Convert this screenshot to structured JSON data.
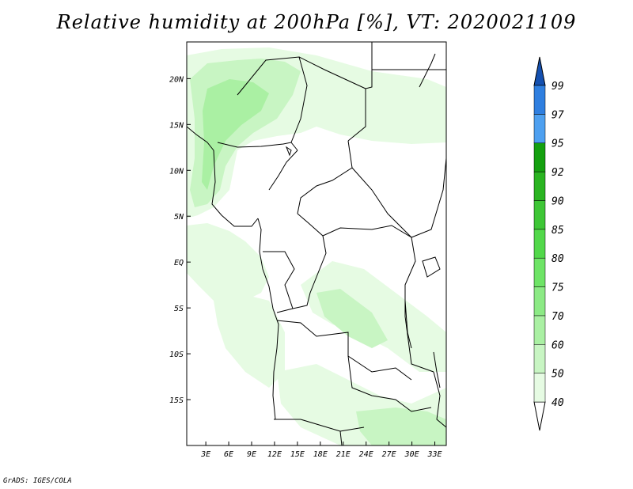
{
  "title": "Relative humidity at 200hPa [%], VT: 2020021109",
  "footer": "GrADS: IGES/COLA",
  "map": {
    "lat_range": [
      -20,
      24
    ],
    "lon_range": [
      0.5,
      34.5
    ],
    "lat_ticks": [
      {
        "value": 20,
        "label": "20N"
      },
      {
        "value": 15,
        "label": "15N"
      },
      {
        "value": 10,
        "label": "10N"
      },
      {
        "value": 5,
        "label": "5N"
      },
      {
        "value": 0,
        "label": "EQ"
      },
      {
        "value": -5,
        "label": "5S"
      },
      {
        "value": -10,
        "label": "10S"
      },
      {
        "value": -15,
        "label": "15S"
      }
    ],
    "lon_ticks": [
      {
        "value": 3,
        "label": "3E"
      },
      {
        "value": 6,
        "label": "6E"
      },
      {
        "value": 9,
        "label": "9E"
      },
      {
        "value": 12,
        "label": "12E"
      },
      {
        "value": 15,
        "label": "15E"
      },
      {
        "value": 18,
        "label": "18E"
      },
      {
        "value": 21,
        "label": "21E"
      },
      {
        "value": 24,
        "label": "24E"
      },
      {
        "value": 27,
        "label": "27E"
      },
      {
        "value": 30,
        "label": "30E"
      },
      {
        "value": 33,
        "label": "33E"
      }
    ]
  },
  "colorbar": {
    "levels": [
      "40",
      "50",
      "60",
      "70",
      "75",
      "80",
      "85",
      "90",
      "92",
      "95",
      "97",
      "99"
    ],
    "colors": [
      "#e6fbe3",
      "#c8f5c3",
      "#aaf0a3",
      "#8cea85",
      "#6ee466",
      "#52d84a",
      "#3ec636",
      "#2ab421",
      "#14a00f",
      "#4ea0f0",
      "#2f7fe0",
      "#1a60c8"
    ],
    "below_color": "#ffffff",
    "above_color": "#1450b0"
  }
}
